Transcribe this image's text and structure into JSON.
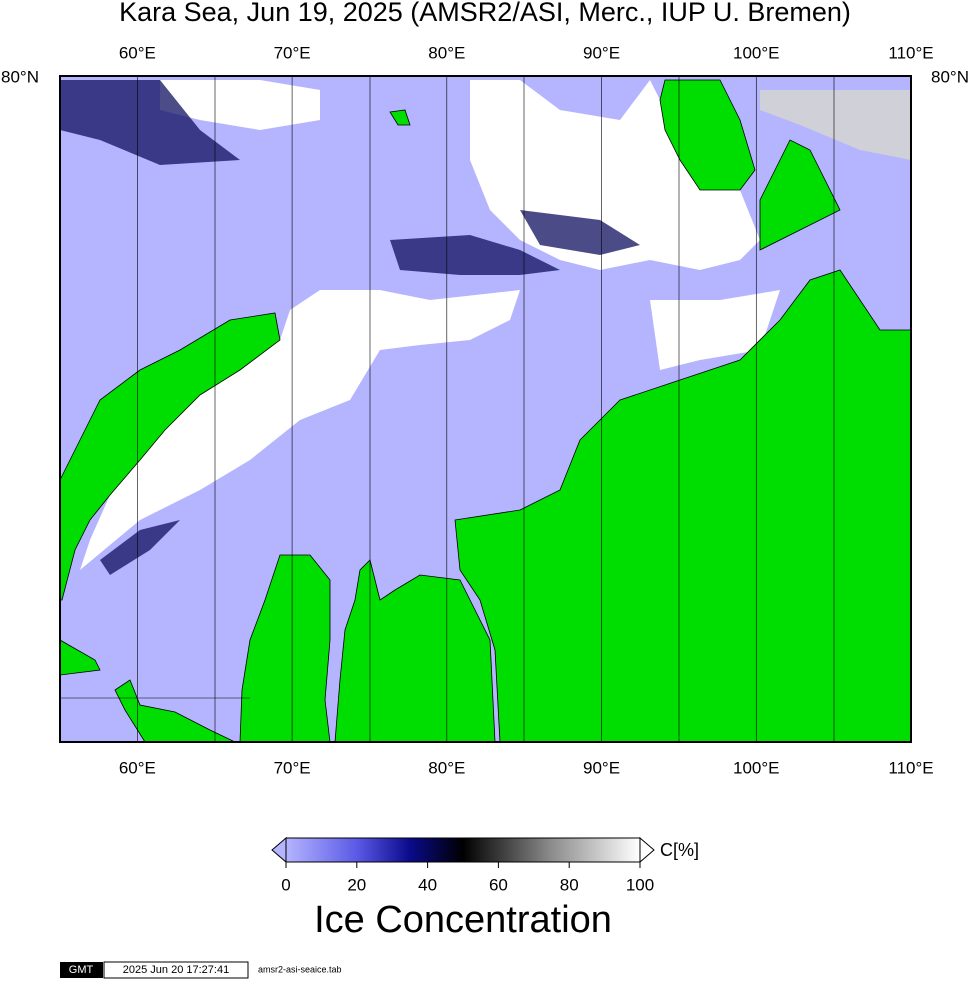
{
  "title": "Kara Sea, Jun 19, 2025 (AMSR2/ASI, Merc., IUP U. Bremen)",
  "map": {
    "xlim": [
      55,
      110
    ],
    "xticks": [
      {
        "value": 60,
        "label": "60°E"
      },
      {
        "value": 70,
        "label": "70°E"
      },
      {
        "value": 80,
        "label": "80°E"
      },
      {
        "value": 90,
        "label": "90°E"
      },
      {
        "value": 100,
        "label": "100°E"
      },
      {
        "value": 110,
        "label": "110°E"
      }
    ],
    "lat_label": "80°N"
  },
  "colorbar": {
    "lim": [
      0,
      100
    ],
    "ticks": [
      0,
      20,
      40,
      60,
      80,
      100
    ],
    "unit": "C[%]",
    "title": "Ice Concentration"
  },
  "footer": {
    "logo": "GMT",
    "timestamp": "2025 Jun 20 17:27:41",
    "file": "amsr2-asi-seaice.tab"
  }
}
